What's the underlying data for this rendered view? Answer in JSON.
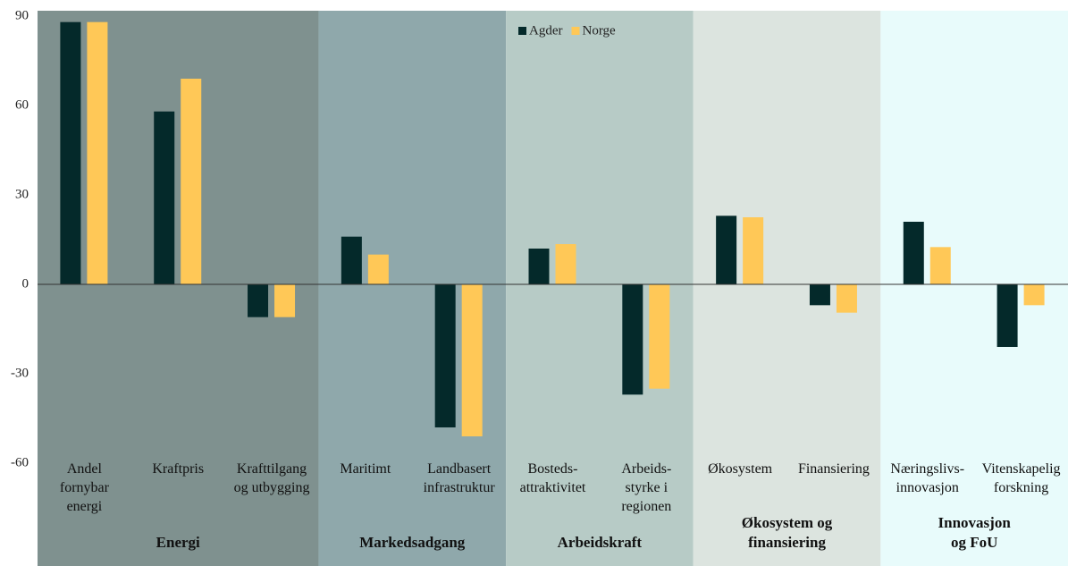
{
  "chart_data": {
    "type": "bar",
    "categories": [
      "Andel\nfornybar\nenergi",
      "Kraftpris",
      "Krafttilgang\nog utbygging",
      "Maritimt",
      "Landbasert\ninfrastruktur",
      "Bosteds-\nattraktivitet",
      "Arbeids-\nstyrke i\nregionen",
      "Økosystem",
      "Finansiering",
      "Næringslivs-\ninnovasjon",
      "Vitenskapelig\nforskning"
    ],
    "series": [
      {
        "name": "Agder",
        "color": "#04292a",
        "values": [
          88,
          58,
          -11,
          16,
          -48,
          12,
          -37,
          23,
          -7,
          21,
          -21
        ]
      },
      {
        "name": "Norge",
        "color": "#ffc857",
        "values": [
          88,
          69,
          -11,
          10,
          -51,
          13.5,
          -35,
          22.5,
          -9.5,
          12.5,
          -7
        ]
      }
    ],
    "groups": [
      {
        "label": "Energi",
        "size": 3,
        "color": "#7f918f"
      },
      {
        "label": "Markedsadgang",
        "size": 2,
        "color": "#8fa8ab"
      },
      {
        "label": "Arbeidskraft",
        "size": 2,
        "color": "#b7cbc6"
      },
      {
        "label": "Økosystem og\nfinansiering",
        "size": 2,
        "color": "#dce4df"
      },
      {
        "label": "Innovasjon\nog FoU",
        "size": 2,
        "color": "#e8fbfb"
      }
    ],
    "ylim": [
      -60,
      90
    ],
    "yticks": [
      -60,
      -30,
      0,
      30,
      60,
      90
    ],
    "legend": "top"
  }
}
